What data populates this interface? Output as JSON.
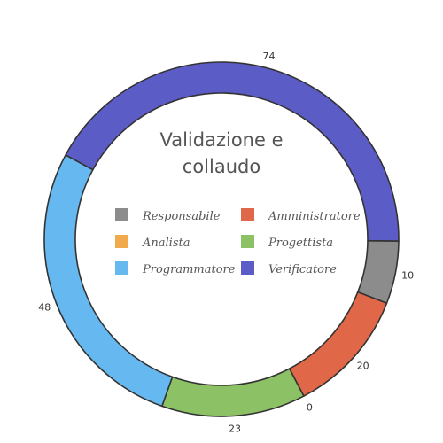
{
  "chart_data": {
    "type": "pie",
    "title": "Validazione e collaudo",
    "categories": [
      "Responsabile",
      "Amministratore",
      "Analista",
      "Progettista",
      "Programmatore",
      "Verificatore"
    ],
    "values": [
      10,
      20,
      0,
      23,
      48,
      74
    ],
    "colors": [
      "#8c8c8c",
      "#e06747",
      "#f0a94b",
      "#8cc265",
      "#66b9f0",
      "#5c5cc7"
    ],
    "legend_placement": "center",
    "donut": true
  }
}
